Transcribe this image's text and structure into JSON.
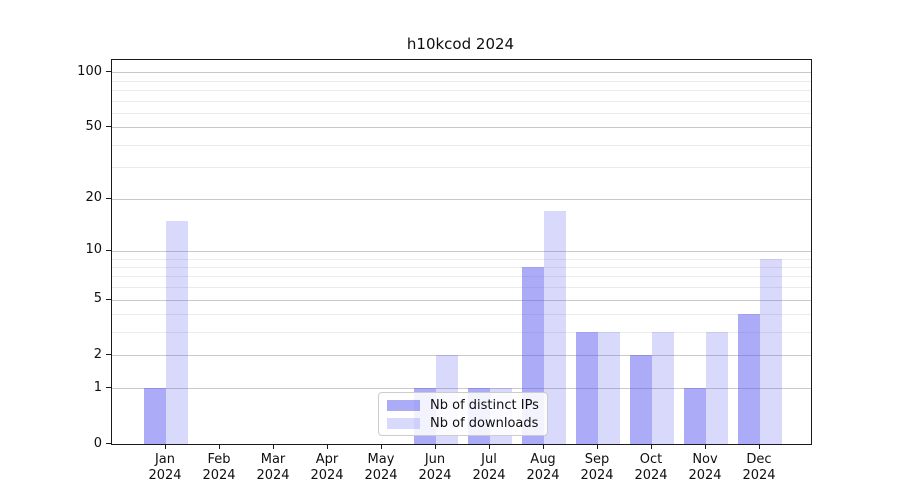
{
  "title": "h10kcod 2024",
  "chart_data": {
    "type": "bar",
    "title": "h10kcod 2024",
    "categories": [
      "Jan",
      "Feb",
      "Mar",
      "Apr",
      "May",
      "Jun",
      "Jul",
      "Aug",
      "Sep",
      "Oct",
      "Nov",
      "Dec"
    ],
    "year": "2024",
    "series": [
      {
        "name": "Nb of distinct IPs",
        "key": "distinct-ips",
        "color": "rgba(90,90,240,0.51)",
        "values": [
          1,
          0,
          0,
          0,
          0,
          1,
          1,
          8,
          3,
          2,
          1,
          4
        ]
      },
      {
        "name": "Nb of downloads",
        "key": "downloads",
        "color": "rgba(90,90,240,0.23)",
        "values": [
          15,
          0,
          0,
          0,
          0,
          2,
          1,
          17,
          3,
          3,
          3,
          9
        ]
      }
    ],
    "y_axis": {
      "scale": "log10(1+v)",
      "major_ticks": [
        0,
        1,
        2,
        5,
        10,
        20,
        50,
        100
      ],
      "minor_ticks": [
        3,
        4,
        6,
        7,
        8,
        9,
        30,
        40,
        60,
        70,
        80,
        90
      ],
      "range_top": 115
    },
    "x_axis": {
      "tick_label_format": "Month over Year"
    },
    "legend_position": "lower center",
    "grid": true,
    "colors": {
      "major_grid": "#c9c9c9",
      "minor_grid": "#ebebeb",
      "spine": "#1a1a1a",
      "background": "#ffffff"
    }
  }
}
